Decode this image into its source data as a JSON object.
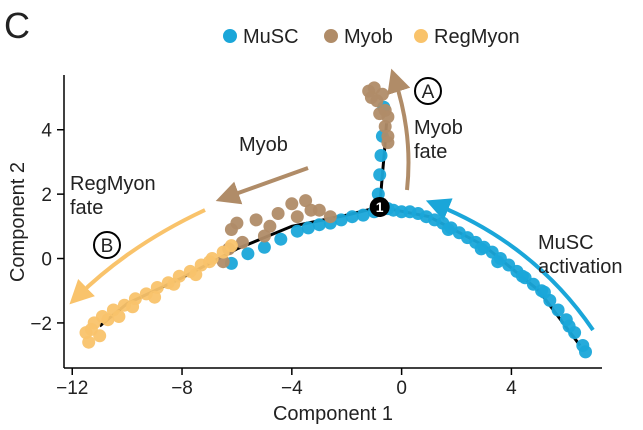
{
  "panel_label": "C",
  "colors": {
    "MuSC": "#1aa6d9",
    "Myob": "#b08c68",
    "RegMyon": "#f9c36b",
    "trajectory": "#000000"
  },
  "annotations": {
    "myob_fate": [
      "Myob",
      "fate"
    ],
    "regmyon_fate": [
      "RegMyon",
      "fate"
    ],
    "myob": "Myob",
    "musc_activation": [
      "MuSC",
      "activation"
    ],
    "branch_node": "1",
    "label_a": "A",
    "label_b": "B"
  },
  "chart_data": {
    "type": "scatter",
    "title": "",
    "xlabel": "Component 1",
    "ylabel": "Component 2",
    "xlim": [
      -12.3,
      7.3
    ],
    "ylim": [
      -3.4,
      5.7
    ],
    "xticks": [
      -12,
      -8,
      -4,
      0,
      4
    ],
    "yticks": [
      -2,
      0,
      2,
      4
    ],
    "xtick_labels": [
      "−12",
      "−8",
      "−4",
      "0",
      "4"
    ],
    "ytick_labels": [
      "−2",
      "0",
      "2",
      "4"
    ],
    "legend": {
      "placement": "top",
      "entries": [
        "MuSC",
        "Myob",
        "RegMyon"
      ]
    },
    "grid": false,
    "trajectory": {
      "stem": [
        [
          -0.8,
          1.6
        ],
        [
          -0.7,
          2.6
        ],
        [
          -0.6,
          3.6
        ],
        [
          -0.55,
          4.2
        ]
      ],
      "left_branch": [
        [
          -0.8,
          1.6
        ],
        [
          -2,
          1.35
        ],
        [
          -4,
          1.0
        ],
        [
          -6,
          0.3
        ],
        [
          -8,
          -0.6
        ],
        [
          -10,
          -1.4
        ],
        [
          -11,
          -2.1
        ]
      ],
      "right_branch": [
        [
          -0.8,
          1.6
        ],
        [
          1,
          1.3
        ],
        [
          3,
          0.4
        ],
        [
          5,
          -1.0
        ],
        [
          6.5,
          -2.7
        ]
      ],
      "branch_point": [
        -0.8,
        1.6
      ]
    },
    "series": [
      {
        "name": "MuSC",
        "points": [
          [
            -0.7,
            1.6
          ],
          [
            -0.5,
            1.55
          ],
          [
            -0.3,
            1.5
          ],
          [
            0,
            1.45
          ],
          [
            0.3,
            1.45
          ],
          [
            0.6,
            1.4
          ],
          [
            0.9,
            1.3
          ],
          [
            1.2,
            1.2
          ],
          [
            1.5,
            1.1
          ],
          [
            1.8,
            0.95
          ],
          [
            2.1,
            0.8
          ],
          [
            2.4,
            0.65
          ],
          [
            2.7,
            0.5
          ],
          [
            3,
            0.35
          ],
          [
            3.3,
            0.2
          ],
          [
            3.6,
            0
          ],
          [
            3.9,
            -0.2
          ],
          [
            4.2,
            -0.4
          ],
          [
            4.5,
            -0.6
          ],
          [
            4.8,
            -0.8
          ],
          [
            5.1,
            -1.0
          ],
          [
            5.4,
            -1.3
          ],
          [
            5.7,
            -1.6
          ],
          [
            6,
            -1.9
          ],
          [
            6.3,
            -2.3
          ],
          [
            6.6,
            -2.7
          ],
          [
            6.7,
            -2.9
          ],
          [
            -1,
            1.45
          ],
          [
            -1.4,
            1.35
          ],
          [
            -1.8,
            1.3
          ],
          [
            -2.2,
            1.2
          ],
          [
            -2.6,
            1.1
          ],
          [
            -3,
            1.05
          ],
          [
            -3.4,
            0.95
          ],
          [
            -3.8,
            0.85
          ],
          [
            -4.4,
            0.6
          ],
          [
            -5,
            0.35
          ],
          [
            -5.6,
            0.15
          ],
          [
            -6.2,
            -0.15
          ],
          [
            -0.65,
            4.7
          ],
          [
            -0.7,
            3.8
          ],
          [
            -0.75,
            3.2
          ],
          [
            -0.8,
            2.6
          ],
          [
            -0.85,
            2.0
          ],
          [
            3.5,
            -0.1
          ],
          [
            5.2,
            -1.05
          ],
          [
            6.1,
            -2.1
          ],
          [
            2.9,
            0.3
          ],
          [
            4.4,
            -0.55
          ],
          [
            1.7,
            0.9
          ]
        ]
      },
      {
        "name": "Myob",
        "points": [
          [
            -1.2,
            5.2
          ],
          [
            -1,
            5.3
          ],
          [
            -0.7,
            5.1
          ],
          [
            -0.9,
            4.9
          ],
          [
            -0.6,
            4.6
          ],
          [
            -0.5,
            4.4
          ],
          [
            -0.6,
            4.1
          ],
          [
            -0.5,
            3.8
          ],
          [
            -0.5,
            3.6
          ],
          [
            -1.1,
            5.0
          ],
          [
            -0.8,
            4.5
          ],
          [
            -4,
            1.7
          ],
          [
            -3.5,
            1.8
          ],
          [
            -3,
            1.5
          ],
          [
            -2.6,
            1.3
          ],
          [
            -3.3,
            1.5
          ],
          [
            -4.5,
            1.4
          ],
          [
            -5.3,
            1.2
          ],
          [
            -6,
            1.1
          ],
          [
            -6.2,
            0.9
          ],
          [
            -5.8,
            0.5
          ],
          [
            -6.3,
            0.3
          ],
          [
            -6.5,
            -0.1
          ],
          [
            -4.8,
            1.0
          ],
          [
            -3.8,
            1.3
          ],
          [
            -5,
            0.7
          ]
        ]
      },
      {
        "name": "RegMyon",
        "points": [
          [
            -6.5,
            0.2
          ],
          [
            -6.9,
            0
          ],
          [
            -7.3,
            -0.2
          ],
          [
            -7.7,
            -0.4
          ],
          [
            -8.1,
            -0.55
          ],
          [
            -8.5,
            -0.75
          ],
          [
            -8.9,
            -0.9
          ],
          [
            -9.3,
            -1.1
          ],
          [
            -9.7,
            -1.25
          ],
          [
            -10.1,
            -1.45
          ],
          [
            -10.5,
            -1.6
          ],
          [
            -10.9,
            -1.8
          ],
          [
            -11.2,
            -2.0
          ],
          [
            -11.5,
            -2.3
          ],
          [
            -11.4,
            -2.6
          ],
          [
            -11,
            -2.4
          ],
          [
            -10.7,
            -1.9
          ],
          [
            -9.8,
            -1.5
          ],
          [
            -9,
            -1.2
          ],
          [
            -8.3,
            -0.8
          ],
          [
            -7.5,
            -0.5
          ],
          [
            -7,
            -0.1
          ],
          [
            -6.2,
            0.4
          ],
          [
            -10.3,
            -1.8
          ],
          [
            -11.3,
            -2.2
          ]
        ]
      }
    ]
  }
}
